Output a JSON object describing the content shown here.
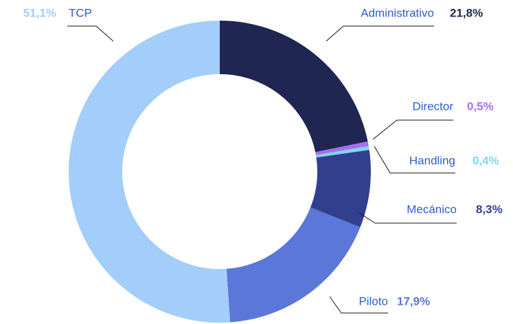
{
  "chart_data": {
    "type": "donut",
    "categories": [
      "Administrativo",
      "Director",
      "Handling",
      "Mecánico",
      "Piloto",
      "TCP"
    ],
    "values": [
      21.8,
      0.5,
      0.4,
      8.3,
      17.9,
      51.1
    ],
    "value_labels": [
      "21,8%",
      "0,5%",
      "0,4%",
      "8,3%",
      "17,9%",
      "51,1%"
    ],
    "colors": [
      "#1f2651",
      "#a66ef2",
      "#7fd6ee",
      "#323f8f",
      "#5a77d9",
      "#a3cdfa"
    ]
  }
}
